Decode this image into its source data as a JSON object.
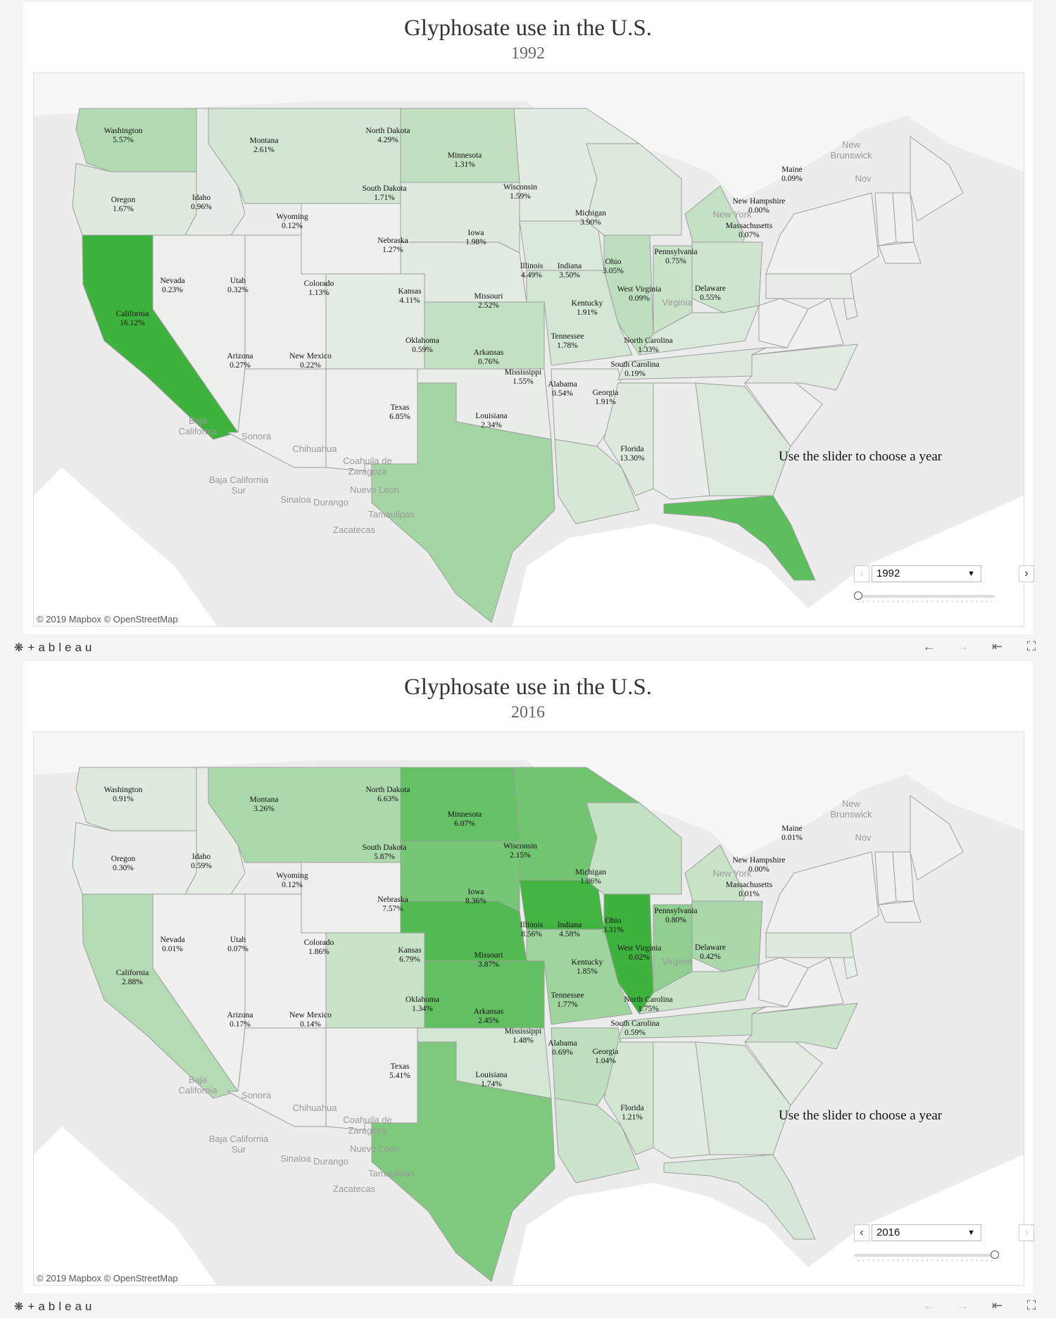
{
  "colors": {
    "ocean": "#ffffff",
    "land": "#ececec",
    "border": "#9e9e9e",
    "scale_low": "#f0f0f0",
    "scale_high": "#3db33d"
  },
  "credit": "© 2019 Mapbox © OpenStreetMap",
  "instruction": "Use the slider to choose a year",
  "footer": {
    "logo_mark": "❋",
    "logo_text": "+ableau",
    "icons": [
      "undo-icon",
      "redo-icon",
      "revert-icon",
      "fullscreen-icon"
    ],
    "undo_glyph": "←",
    "redo_glyph": "→",
    "revert_glyph": "⇤",
    "fullscreen_glyph": "⛶"
  },
  "geo_labels": [
    {
      "text": "Baja California",
      "lines": [
        "Baja",
        "California"
      ]
    },
    {
      "text": "Sonora",
      "lines": [
        "Sonora"
      ]
    },
    {
      "text": "Chihuahua",
      "lines": [
        "Chihuahua"
      ]
    },
    {
      "text": "Coahuila de Zaragoza",
      "lines": [
        "Coahuila de",
        "Zaragoza"
      ]
    },
    {
      "text": "Baja California Sur",
      "lines": [
        "Baja California",
        "Sur"
      ]
    },
    {
      "text": "Sinaloa",
      "lines": [
        "Sinaloa"
      ]
    },
    {
      "text": "Durango",
      "lines": [
        "Durango"
      ]
    },
    {
      "text": "Nuevo León",
      "lines": [
        "Nuevo León"
      ]
    },
    {
      "text": "Tamaulipas",
      "lines": [
        "Tamaulipas"
      ]
    },
    {
      "text": "Zacatecas",
      "lines": [
        "Zacatecas"
      ]
    },
    {
      "text": "New Brunswick",
      "lines": [
        "New",
        "Brunswick"
      ]
    },
    {
      "text": "Nov",
      "lines": [
        "Nov"
      ]
    },
    {
      "text": "New York",
      "lines": [
        "New York"
      ]
    },
    {
      "text": "Virginia",
      "lines": [
        "Virginia"
      ]
    }
  ],
  "panels": [
    {
      "title": "Glyphosate use in the U.S.",
      "year": "1992",
      "slider_fraction": 0.0,
      "prev_enabled": false,
      "next_enabled": true,
      "values": {
        "Washington": "5.57%",
        "Oregon": "1.67%",
        "California": "16.12%",
        "Idaho": "0.96%",
        "Nevada": "0.23%",
        "Montana": "2.61%",
        "Wyoming": "0.12%",
        "Utah": "0.32%",
        "Arizona": "0.27%",
        "Colorado": "1.13%",
        "New Mexico": "0.22%",
        "North Dakota": "4.29%",
        "South Dakota": "1.71%",
        "Nebraska": "1.27%",
        "Kansas": "4.11%",
        "Oklahoma": "0.59%",
        "Texas": "6.85%",
        "Minnesota": "1.31%",
        "Iowa": "1.98%",
        "Missouri": "2.52%",
        "Arkansas": "0.76%",
        "Louisiana": "2.34%",
        "Wisconsin": "1.59%",
        "Illinois": "4.49%",
        "Michigan": "3.90%",
        "Indiana": "3.50%",
        "Ohio": "3.05%",
        "Kentucky": "1.91%",
        "Tennessee": "1.78%",
        "Mississippi": "1.55%",
        "Alabama": "0.54%",
        "Georgia": "1.91%",
        "Florida": "13.30%",
        "South Carolina": "0.19%",
        "North Carolina": "1.33%",
        "West Virginia": "0.09%",
        "Delaware": "0.55%",
        "Pennsylvania": "0.75%",
        "Massachusetts": "0.07%",
        "New Hampshire": "0.00%",
        "Maine": "0.09%"
      }
    },
    {
      "title": "Glyphosate use in the U.S.",
      "year": "2016",
      "slider_fraction": 1.0,
      "prev_enabled": true,
      "next_enabled": false,
      "values": {
        "Washington": "0.91%",
        "Oregon": "0.30%",
        "California": "2.88%",
        "Idaho": "0.59%",
        "Nevada": "0.01%",
        "Montana": "3.26%",
        "Wyoming": "0.12%",
        "Utah": "0.07%",
        "Arizona": "0.17%",
        "Colorado": "1.86%",
        "New Mexico": "0.14%",
        "North Dakota": "6.63%",
        "South Dakota": "5.87%",
        "Nebraska": "7.57%",
        "Kansas": "6.79%",
        "Oklahoma": "1.34%",
        "Texas": "5.41%",
        "Minnesota": "6.07%",
        "Iowa": "8.36%",
        "Missouri": "3.87%",
        "Arkansas": "2.45%",
        "Louisiana": "1.74%",
        "Wisconsin": "2.15%",
        "Illinois": "8.56%",
        "Michigan": "1.86%",
        "Indiana": "4.58%",
        "Ohio": "3.31%",
        "Kentucky": "1.85%",
        "Tennessee": "1.77%",
        "Mississippi": "1.48%",
        "Alabama": "0.69%",
        "Georgia": "1.04%",
        "Florida": "1.21%",
        "South Carolina": "0.59%",
        "North Carolina": "1.75%",
        "West Virginia": "0.02%",
        "Delaware": "0.42%",
        "Pennsylvania": "0.80%",
        "Massachusetts": "0.01%",
        "New Hampshire": "0.00%",
        "Maine": "0.01%"
      }
    }
  ]
}
